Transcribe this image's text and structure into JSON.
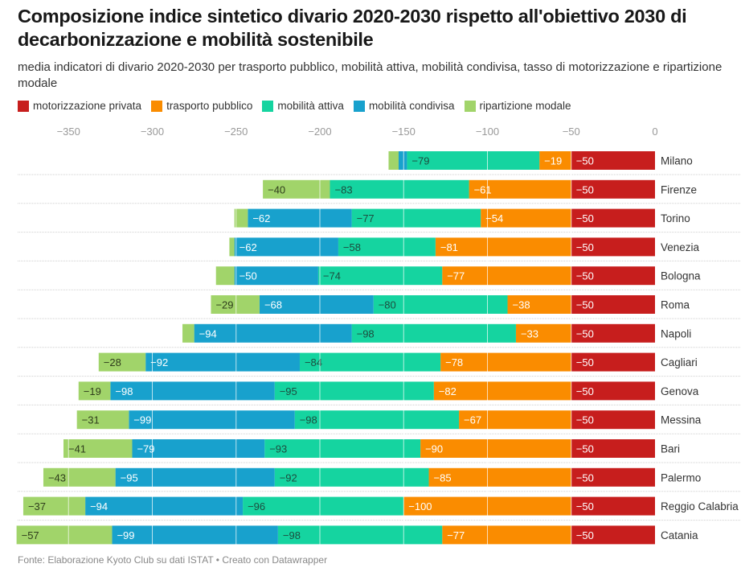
{
  "header": {
    "title": "Composizione indice sintetico divario 2020-2030 rispetto all'obiettivo 2030 di decarbonizzazione e mobilità sostenibile",
    "subtitle": "media indicatori di divario 2020-2030 per trasporto pubblico, mobilità attiva, mobilità condivisa, tasso di motorizzazione e ripartizione modale"
  },
  "footer": {
    "source": "Fonte: Elaborazione Kyoto Club su dati ISTAT • Creato con Datawrapper"
  },
  "chart_data": {
    "type": "bar",
    "orientation": "horizontal-stacked",
    "title": "Composizione indice sintetico divario 2020-2030 rispetto all'obiettivo 2030 di decarbonizzazione e mobilità sostenibile",
    "xlabel": "",
    "ylabel": "",
    "xlim": [
      -380,
      0
    ],
    "xticks": [
      -350,
      -300,
      -250,
      -200,
      -150,
      -100,
      -50,
      0
    ],
    "grid": true,
    "legend_position": "top-left",
    "categories": [
      "Milano",
      "Firenze",
      "Torino",
      "Venezia",
      "Bologna",
      "Roma",
      "Napoli",
      "Cagliari",
      "Genova",
      "Messina",
      "Bari",
      "Palermo",
      "Reggio Calabria",
      "Catania"
    ],
    "series": [
      {
        "name": "motorizzazione privata",
        "color": "#c71e1d",
        "label_color": "#ffffff",
        "values": [
          -50,
          -50,
          -50,
          -50,
          -50,
          -50,
          -50,
          -50,
          -50,
          -50,
          -50,
          -50,
          -50,
          -50
        ],
        "show_labels": [
          true,
          true,
          true,
          true,
          true,
          true,
          true,
          true,
          true,
          true,
          true,
          true,
          true,
          true
        ]
      },
      {
        "name": "trasporto pubblico",
        "color": "#fa8c00",
        "label_color": "#ffffff",
        "values": [
          -19,
          -61,
          -54,
          -81,
          -77,
          -38,
          -33,
          -78,
          -82,
          -67,
          -90,
          -85,
          -100,
          -77
        ],
        "show_labels": [
          true,
          true,
          true,
          true,
          true,
          true,
          true,
          true,
          true,
          true,
          true,
          true,
          true,
          true
        ]
      },
      {
        "name": "mobilità attiva",
        "color": "#15d4a0",
        "label_color": "#1d4d3f",
        "values": [
          -79,
          -83,
          -77,
          -58,
          -74,
          -80,
          -98,
          -84,
          -95,
          -98,
          -93,
          -92,
          -96,
          -98
        ],
        "show_labels": [
          true,
          true,
          true,
          true,
          true,
          true,
          true,
          true,
          true,
          true,
          true,
          true,
          true,
          true
        ]
      },
      {
        "name": "mobilità condivisa",
        "color": "#18a1cd",
        "label_color": "#ffffff",
        "values": [
          -5,
          0,
          -62,
          -62,
          -50,
          -68,
          -94,
          -92,
          -98,
          -99,
          -79,
          -95,
          -94,
          -99
        ],
        "show_labels": [
          false,
          false,
          true,
          true,
          true,
          true,
          true,
          true,
          true,
          true,
          true,
          true,
          true,
          true
        ]
      },
      {
        "name": "ripartizione modale",
        "color": "#a1d46a",
        "label_color": "#2f3d1c",
        "values": [
          -6,
          -40,
          -8,
          -3,
          -11,
          -29,
          -7,
          -28,
          -19,
          -31,
          -41,
          -43,
          -37,
          -57
        ],
        "show_labels": [
          false,
          true,
          false,
          false,
          false,
          true,
          false,
          true,
          true,
          true,
          true,
          true,
          true,
          true
        ]
      }
    ]
  }
}
